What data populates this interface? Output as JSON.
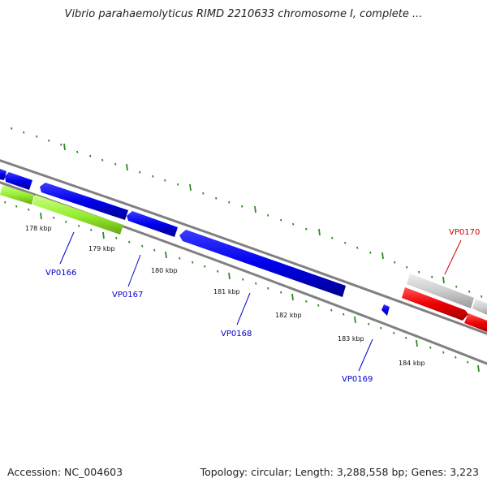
{
  "header": {
    "title": "Vibrio parahaemolyticus RIMD 2210633 chromosome I, complete ..."
  },
  "footer": {
    "accession": "Accession: NC_004603",
    "summary": "Topology: circular; Length: 3,288,558 bp; Genes: 3,223"
  },
  "map": {
    "scale_labels": [
      "178 kbp",
      "179 kbp",
      "180 kbp",
      "181 kbp",
      "182 kbp",
      "183 kbp",
      "184 kbp"
    ],
    "genes": [
      {
        "label": "VP0166",
        "color": "#0000cc"
      },
      {
        "label": "VP0167",
        "color": "#0000cc"
      },
      {
        "label": "VP0168",
        "color": "#0000cc"
      },
      {
        "label": "VP0169",
        "color": "#0000cc"
      },
      {
        "label": "VP0170",
        "color": "#cc0000"
      }
    ],
    "colors": {
      "backbone": "#808080",
      "cds": "#0000ee",
      "gene": "#99ee33",
      "highlight_cds": "#ee0000",
      "highlight_gene": "#c8c8c8",
      "ticks": "#2e8b22"
    }
  }
}
